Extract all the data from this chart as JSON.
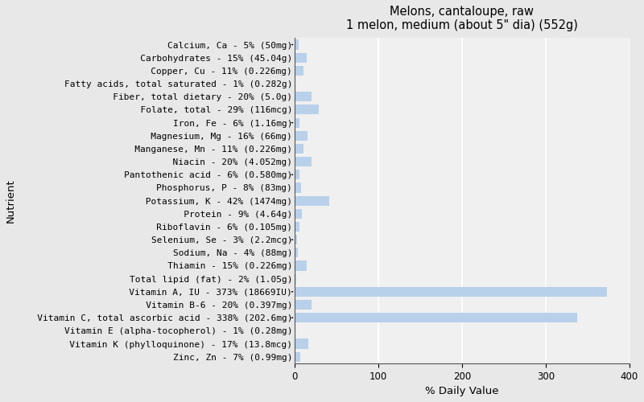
{
  "title": "Melons, cantaloupe, raw\n1 melon, medium (about 5\" dia) (552g)",
  "xlabel": "% Daily Value",
  "ylabel": "Nutrient",
  "nutrients": [
    {
      "label": "Calcium, Ca - 5% (50mg)",
      "value": 5,
      "indent": 0
    },
    {
      "label": "Carbohydrates - 15% (45.04g)",
      "value": 15,
      "indent": 1
    },
    {
      "label": "Copper, Cu - 11% (0.226mg)",
      "value": 11,
      "indent": 1
    },
    {
      "label": "Fatty acids, total saturated - 1% (0.282g)",
      "value": 1,
      "indent": 0
    },
    {
      "label": "Fiber, total dietary - 20% (5.0g)",
      "value": 20,
      "indent": 1
    },
    {
      "label": "Folate, total - 29% (116mcg)",
      "value": 29,
      "indent": 2
    },
    {
      "label": "Iron, Fe - 6% (1.16mg)",
      "value": 6,
      "indent": 0
    },
    {
      "label": "Magnesium, Mg - 16% (66mg)",
      "value": 16,
      "indent": 1
    },
    {
      "label": "Manganese, Mn - 11% (0.226mg)",
      "value": 11,
      "indent": 1
    },
    {
      "label": "Niacin - 20% (4.052mg)",
      "value": 20,
      "indent": 2
    },
    {
      "label": "Pantothenic acid - 6% (0.580mg)",
      "value": 6,
      "indent": 0
    },
    {
      "label": "Phosphorus, P - 8% (83mg)",
      "value": 8,
      "indent": 0
    },
    {
      "label": "Potassium, K - 42% (1474mg)",
      "value": 42,
      "indent": 3
    },
    {
      "label": "Protein - 9% (4.64g)",
      "value": 9,
      "indent": 1
    },
    {
      "label": "Riboflavin - 6% (0.105mg)",
      "value": 6,
      "indent": 1
    },
    {
      "label": "Selenium, Se - 3% (2.2mcg)",
      "value": 3,
      "indent": 0
    },
    {
      "label": "Sodium, Na - 4% (88mg)",
      "value": 4,
      "indent": 0
    },
    {
      "label": "Thiamin - 15% (0.226mg)",
      "value": 15,
      "indent": 1
    },
    {
      "label": "Total lipid (fat) - 2% (1.05g)",
      "value": 2,
      "indent": 0
    },
    {
      "label": "Vitamin A, IU - 373% (18669IU)",
      "value": 373,
      "indent": 1
    },
    {
      "label": "Vitamin B-6 - 20% (0.397mg)",
      "value": 20,
      "indent": 1
    },
    {
      "label": "Vitamin C, total ascorbic acid - 338% (202.6mg)",
      "value": 338,
      "indent": 1
    },
    {
      "label": "Vitamin E (alpha-tocopherol) - 1% (0.28mg)",
      "value": 1,
      "indent": 0
    },
    {
      "label": "Vitamin K (phylloquinone) - 17% (13.8mcg)",
      "value": 17,
      "indent": 1
    },
    {
      "label": "Zinc, Zn - 7% (0.99mg)",
      "value": 7,
      "indent": 0
    }
  ],
  "tick_positions": [
    0,
    6,
    10,
    15,
    19,
    21
  ],
  "bar_color": "#b8d0ea",
  "background_color": "#e8e8e8",
  "plot_bg_color": "#f0f0f0",
  "xlim": [
    0,
    400
  ],
  "xticks": [
    0,
    100,
    200,
    300,
    400
  ],
  "grid_color": "#ffffff",
  "title_fontsize": 10.5,
  "axis_label_fontsize": 9.5,
  "tick_fontsize": 8.5,
  "bar_label_fontsize": 8.0,
  "indent_spaces": 3
}
